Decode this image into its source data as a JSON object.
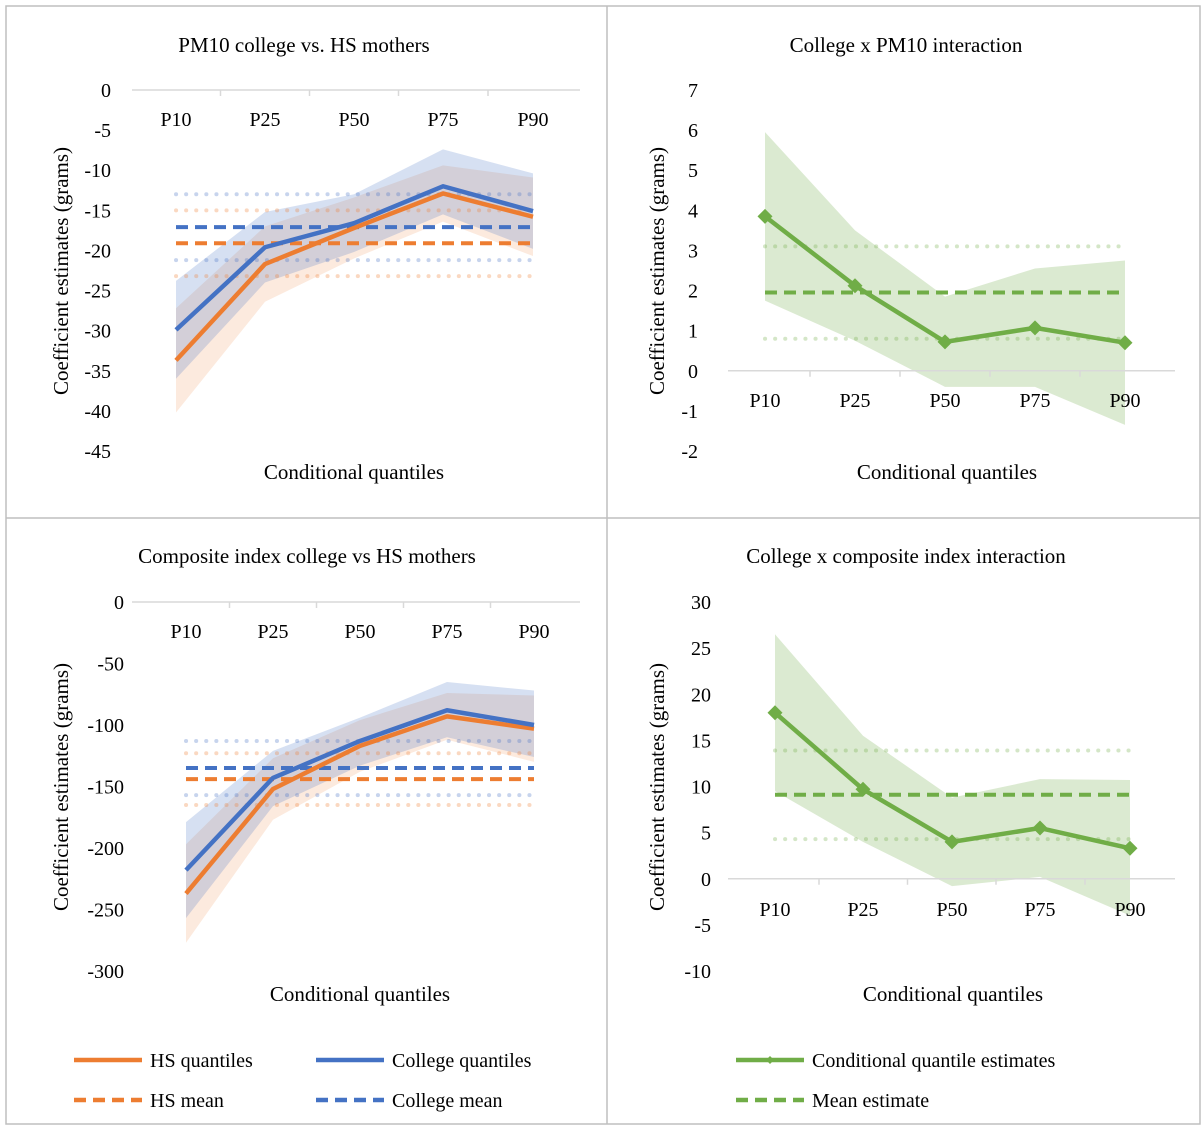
{
  "chart_data": [
    {
      "type": "line",
      "title": "PM10 college vs. HS mothers",
      "xlabel": "Conditional quantiles",
      "ylabel": "Coefficient estimates (grams)",
      "categories": [
        "P10",
        "P25",
        "P50",
        "P75",
        "P90"
      ],
      "ylim": [
        -45,
        0
      ],
      "yticks": [
        0,
        -5,
        -10,
        -15,
        -20,
        -25,
        -30,
        -35,
        -40,
        -45
      ],
      "grid": false,
      "series": [
        {
          "name": "HS quantiles",
          "values": [
            -33.7,
            -21.7,
            -17.2,
            -12.9,
            -15.8
          ],
          "color": "#ED7D31",
          "style": "solid",
          "ci_low": [
            -40.2,
            -26.4,
            -21.0,
            -16.4,
            -20.7
          ],
          "ci_high": [
            -27.2,
            -17.0,
            -13.4,
            -9.4,
            -10.9
          ]
        },
        {
          "name": "College quantiles",
          "values": [
            -29.9,
            -19.6,
            -16.6,
            -12.0,
            -15.1
          ],
          "color": "#4472C4",
          "style": "solid",
          "ci_low": [
            -36.0,
            -24.0,
            -20.2,
            -15.5,
            -19.8
          ],
          "ci_high": [
            -23.8,
            -15.2,
            -13.0,
            -7.4,
            -10.4
          ]
        },
        {
          "name": "HS mean",
          "values": [
            -19.1,
            -19.1,
            -19.1,
            -19.1,
            -19.1
          ],
          "color": "#ED7D31",
          "style": "dashed",
          "band_low": -23.2,
          "band_high": -15.0
        },
        {
          "name": "College mean",
          "values": [
            -17.1,
            -17.1,
            -17.1,
            -17.1,
            -17.1
          ],
          "color": "#4472C4",
          "style": "dashed",
          "band_low": -21.2,
          "band_high": -13.0
        }
      ]
    },
    {
      "type": "line",
      "title": "College x PM10 interaction",
      "xlabel": "Conditional quantiles",
      "ylabel": "Coefficient estimates (grams)",
      "categories": [
        "P10",
        "P25",
        "P50",
        "P75",
        "P90"
      ],
      "ylim": [
        -2,
        7
      ],
      "yticks": [
        7,
        6,
        5,
        4,
        3,
        2,
        1,
        0,
        -1,
        -2
      ],
      "grid": false,
      "series": [
        {
          "name": "Conditional quantile estimates",
          "values": [
            3.85,
            2.12,
            0.72,
            1.07,
            0.7
          ],
          "color": "#70AD47",
          "style": "solid",
          "marker": "diamond",
          "ci_low": [
            1.75,
            0.75,
            -0.4,
            -0.4,
            -1.35
          ],
          "ci_high": [
            5.95,
            3.5,
            1.85,
            2.55,
            2.75
          ]
        },
        {
          "name": "Mean estimate",
          "values": [
            1.95,
            1.95,
            1.95,
            1.95,
            1.95
          ],
          "color": "#70AD47",
          "style": "dashed",
          "band_low": 0.8,
          "band_high": 3.1
        }
      ]
    },
    {
      "type": "line",
      "title": "Composite index college vs HS mothers",
      "xlabel": "Conditional quantiles",
      "ylabel": "Coefficient estimates (grams)",
      "categories": [
        "P10",
        "P25",
        "P50",
        "P75",
        "P90"
      ],
      "ylim": [
        -300,
        0
      ],
      "yticks": [
        0,
        -50,
        -100,
        -150,
        -200,
        -250,
        -300
      ],
      "grid": false,
      "series": [
        {
          "name": "HS quantiles",
          "values": [
            -237,
            -152,
            -117,
            -93,
            -103
          ],
          "color": "#ED7D31",
          "style": "solid",
          "ci_low": [
            -277,
            -177,
            -138,
            -112,
            -130
          ],
          "ci_high": [
            -197,
            -127,
            -96,
            -74,
            -76
          ]
        },
        {
          "name": "College quantiles",
          "values": [
            -218,
            -143,
            -113,
            -88,
            -100
          ],
          "color": "#4472C4",
          "style": "solid",
          "ci_low": [
            -257,
            -166,
            -133,
            -110,
            -126
          ],
          "ci_high": [
            -179,
            -121,
            -94,
            -65,
            -72
          ]
        },
        {
          "name": "HS mean",
          "values": [
            -144,
            -144,
            -144,
            -144,
            -144
          ],
          "color": "#ED7D31",
          "style": "dashed",
          "band_low": -165,
          "band_high": -123
        },
        {
          "name": "College mean",
          "values": [
            -135,
            -135,
            -135,
            -135,
            -135
          ],
          "color": "#4472C4",
          "style": "dashed",
          "band_low": -157,
          "band_high": -113
        }
      ]
    },
    {
      "type": "line",
      "title": "College x composite index interaction",
      "xlabel": "Conditional quantiles",
      "ylabel": "Coefficient estimates (grams)",
      "categories": [
        "P10",
        "P25",
        "P50",
        "P75",
        "P90"
      ],
      "ylim": [
        -10,
        30
      ],
      "yticks": [
        30,
        25,
        20,
        15,
        10,
        5,
        0,
        -5,
        -10
      ],
      "grid": false,
      "series": [
        {
          "name": "Conditional quantile estimates",
          "values": [
            18.0,
            9.7,
            4.0,
            5.5,
            3.3
          ],
          "color": "#70AD47",
          "style": "solid",
          "marker": "diamond",
          "ci_low": [
            9.5,
            4.0,
            -0.8,
            0.2,
            -4.0
          ],
          "ci_high": [
            26.5,
            15.5,
            8.8,
            10.8,
            10.7
          ]
        },
        {
          "name": "Mean estimate",
          "values": [
            9.1,
            9.1,
            9.1,
            9.1,
            9.1
          ],
          "color": "#70AD47",
          "style": "dashed",
          "band_low": 4.3,
          "band_high": 13.9
        }
      ]
    }
  ],
  "legends": {
    "left": [
      {
        "label": "HS quantiles",
        "color": "#ED7D31",
        "style": "solid"
      },
      {
        "label": "College quantiles",
        "color": "#4472C4",
        "style": "solid"
      },
      {
        "label": "HS mean",
        "color": "#ED7D31",
        "style": "dashed"
      },
      {
        "label": "College mean",
        "color": "#4472C4",
        "style": "dashed"
      }
    ],
    "right": [
      {
        "label": "Conditional quantile estimates",
        "color": "#70AD47",
        "style": "solid",
        "marker": "diamond"
      },
      {
        "label": "Mean estimate",
        "color": "#70AD47",
        "style": "dashed"
      }
    ]
  },
  "colors": {
    "border": "#BFBFBF",
    "axis": "#D9D9D9"
  }
}
